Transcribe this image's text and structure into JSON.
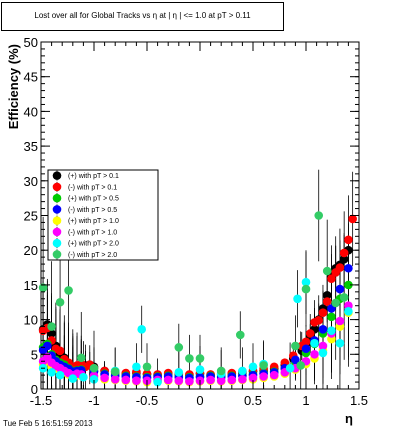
{
  "chart_data": {
    "type": "scatter",
    "title": "Lost over all for Global Tracks vs   η at |  η | <= 1.0 at pT > 0.11",
    "xlabel": "η",
    "ylabel": "Efficiency (%)",
    "xlim": [
      -1.5,
      1.5
    ],
    "ylim": [
      0,
      50
    ],
    "x_ticks": [
      "-1.5",
      "-1",
      "-0.5",
      "0",
      "0.5",
      "1",
      "1.5"
    ],
    "y_ticks": [
      "0",
      "5",
      "10",
      "15",
      "20",
      "25",
      "30",
      "35",
      "40",
      "45",
      "50"
    ],
    "grid": false,
    "legend_position": "center-left",
    "series": [
      {
        "name": "(+) with pT > 0.1",
        "color": "#000000",
        "points": [
          [
            -1.48,
            8.6
          ],
          [
            -1.44,
            9.3
          ],
          [
            -1.4,
            8.0
          ],
          [
            -1.36,
            6.2
          ],
          [
            -1.32,
            5.1
          ],
          [
            -1.28,
            4.5
          ],
          [
            -1.24,
            3.6
          ],
          [
            -1.2,
            3.2
          ],
          [
            -1.16,
            3.0
          ],
          [
            -1.12,
            3.1
          ],
          [
            -1.08,
            3.4
          ],
          [
            -1.04,
            3.5
          ],
          [
            -1.0,
            3.2
          ],
          [
            -0.9,
            2.6
          ],
          [
            -0.8,
            2.4
          ],
          [
            -0.7,
            2.2
          ],
          [
            -0.6,
            2.3
          ],
          [
            -0.5,
            2.1
          ],
          [
            -0.4,
            2.0
          ],
          [
            -0.3,
            2.2
          ],
          [
            -0.2,
            2.1
          ],
          [
            -0.1,
            2.0
          ],
          [
            0.0,
            2.2
          ],
          [
            0.1,
            2.0
          ],
          [
            0.2,
            2.1
          ],
          [
            0.3,
            2.2
          ],
          [
            0.4,
            2.3
          ],
          [
            0.5,
            2.5
          ],
          [
            0.6,
            2.6
          ],
          [
            0.7,
            2.9
          ],
          [
            0.8,
            3.4
          ],
          [
            0.88,
            4.4
          ],
          [
            0.96,
            5.5
          ],
          [
            1.0,
            6.5
          ],
          [
            1.04,
            7.5
          ],
          [
            1.08,
            8.6
          ],
          [
            1.12,
            10.0
          ],
          [
            1.16,
            11.6
          ],
          [
            1.2,
            13.5
          ],
          [
            1.24,
            16.4
          ],
          [
            1.28,
            17.4
          ],
          [
            1.32,
            17.9
          ],
          [
            1.36,
            18.7
          ],
          [
            1.4,
            20.0
          ]
        ]
      },
      {
        "name": "(-) with pT > 0.1",
        "color": "#ff0000",
        "points": [
          [
            -1.48,
            8.4
          ],
          [
            -1.44,
            8.8
          ],
          [
            -1.4,
            7.0
          ],
          [
            -1.36,
            5.8
          ],
          [
            -1.32,
            5.5
          ],
          [
            -1.28,
            4.3
          ],
          [
            -1.24,
            3.8
          ],
          [
            -1.2,
            3.2
          ],
          [
            -1.16,
            3.4
          ],
          [
            -1.12,
            3.6
          ],
          [
            -1.08,
            3.2
          ],
          [
            -1.04,
            3.5
          ],
          [
            -1.0,
            3.0
          ],
          [
            -0.9,
            2.6
          ],
          [
            -0.8,
            2.5
          ],
          [
            -0.7,
            2.3
          ],
          [
            -0.6,
            2.5
          ],
          [
            -0.5,
            2.2
          ],
          [
            -0.4,
            2.1
          ],
          [
            -0.3,
            2.3
          ],
          [
            -0.2,
            2.2
          ],
          [
            -0.1,
            2.1
          ],
          [
            0.0,
            2.3
          ],
          [
            0.1,
            2.1
          ],
          [
            0.2,
            2.2
          ],
          [
            0.3,
            2.3
          ],
          [
            0.4,
            2.5
          ],
          [
            0.5,
            2.7
          ],
          [
            0.6,
            2.9
          ],
          [
            0.7,
            3.2
          ],
          [
            0.8,
            3.8
          ],
          [
            0.88,
            4.8
          ],
          [
            0.96,
            6.2
          ],
          [
            1.0,
            6.8
          ],
          [
            1.04,
            8.0
          ],
          [
            1.08,
            9.6
          ],
          [
            1.12,
            9.9
          ],
          [
            1.16,
            11.0
          ],
          [
            1.2,
            12.6
          ],
          [
            1.24,
            15.9
          ],
          [
            1.28,
            16.8
          ],
          [
            1.32,
            17.5
          ],
          [
            1.36,
            19.6
          ],
          [
            1.4,
            21.5
          ],
          [
            1.44,
            24.5
          ]
        ]
      },
      {
        "name": "(+) with pT > 0.5",
        "color": "#00cc00",
        "points": [
          [
            -1.48,
            6.0
          ],
          [
            -1.44,
            6.5
          ],
          [
            -1.4,
            5.0
          ],
          [
            -1.36,
            4.2
          ],
          [
            -1.32,
            3.8
          ],
          [
            -1.28,
            3.5
          ],
          [
            -1.24,
            3.0
          ],
          [
            -1.2,
            2.6
          ],
          [
            -1.16,
            2.7
          ],
          [
            -1.12,
            2.8
          ],
          [
            -1.0,
            2.6
          ],
          [
            -0.9,
            2.2
          ],
          [
            -0.8,
            2.0
          ],
          [
            -0.7,
            1.9
          ],
          [
            -0.6,
            1.8
          ],
          [
            -0.5,
            1.7
          ],
          [
            -0.4,
            1.8
          ],
          [
            -0.3,
            1.9
          ],
          [
            -0.2,
            1.8
          ],
          [
            -0.1,
            1.7
          ],
          [
            0.0,
            1.8
          ],
          [
            0.1,
            1.9
          ],
          [
            0.2,
            1.8
          ],
          [
            0.3,
            1.9
          ],
          [
            0.4,
            2.0
          ],
          [
            0.5,
            2.1
          ],
          [
            0.6,
            2.3
          ],
          [
            0.7,
            2.5
          ],
          [
            0.8,
            2.9
          ],
          [
            0.9,
            3.8
          ],
          [
            1.0,
            5.2
          ],
          [
            1.08,
            6.5
          ],
          [
            1.16,
            8.0
          ],
          [
            1.24,
            10.4
          ],
          [
            1.32,
            13.0
          ],
          [
            1.4,
            15.0
          ]
        ]
      },
      {
        "name": "(-) with pT > 0.5",
        "color": "#0000ff",
        "points": [
          [
            -1.48,
            5.6
          ],
          [
            -1.44,
            6.2
          ],
          [
            -1.4,
            4.8
          ],
          [
            -1.36,
            4.0
          ],
          [
            -1.32,
            3.5
          ],
          [
            -1.28,
            3.2
          ],
          [
            -1.24,
            2.9
          ],
          [
            -1.2,
            2.5
          ],
          [
            -1.16,
            2.6
          ],
          [
            -1.12,
            2.7
          ],
          [
            -1.0,
            2.5
          ],
          [
            -0.9,
            2.1
          ],
          [
            -0.8,
            1.9
          ],
          [
            -0.7,
            1.8
          ],
          [
            -0.6,
            1.7
          ],
          [
            -0.5,
            1.6
          ],
          [
            -0.4,
            1.7
          ],
          [
            -0.3,
            1.8
          ],
          [
            -0.2,
            1.7
          ],
          [
            -0.1,
            1.6
          ],
          [
            0.0,
            1.7
          ],
          [
            0.1,
            1.8
          ],
          [
            0.2,
            1.7
          ],
          [
            0.3,
            1.8
          ],
          [
            0.4,
            1.9
          ],
          [
            0.5,
            2.0
          ],
          [
            0.6,
            2.2
          ],
          [
            0.7,
            2.4
          ],
          [
            0.8,
            3.0
          ],
          [
            0.9,
            4.2
          ],
          [
            1.0,
            5.8
          ],
          [
            1.08,
            7.0
          ],
          [
            1.16,
            8.6
          ],
          [
            1.24,
            11.6
          ],
          [
            1.32,
            14.4
          ],
          [
            1.4,
            17.4
          ]
        ]
      },
      {
        "name": "(+) with pT > 1.0",
        "color": "#ffff00",
        "points": [
          [
            -1.48,
            3.5
          ],
          [
            -1.44,
            4.0
          ],
          [
            -1.4,
            3.2
          ],
          [
            -1.36,
            2.9
          ],
          [
            -1.32,
            2.6
          ],
          [
            -1.28,
            2.4
          ],
          [
            -1.24,
            2.1
          ],
          [
            -1.2,
            1.9
          ],
          [
            -1.16,
            2.0
          ],
          [
            -1.12,
            1.9
          ],
          [
            -1.0,
            1.7
          ],
          [
            -0.9,
            1.4
          ],
          [
            -0.8,
            1.3
          ],
          [
            -0.7,
            1.2
          ],
          [
            -0.6,
            1.1
          ],
          [
            -0.5,
            1.0
          ],
          [
            -0.4,
            1.1
          ],
          [
            -0.3,
            1.2
          ],
          [
            -0.2,
            1.1
          ],
          [
            -0.1,
            1.0
          ],
          [
            0.0,
            1.1
          ],
          [
            0.1,
            1.2
          ],
          [
            0.2,
            1.1
          ],
          [
            0.3,
            1.2
          ],
          [
            0.4,
            1.3
          ],
          [
            0.5,
            1.4
          ],
          [
            0.6,
            1.6
          ],
          [
            0.7,
            1.8
          ],
          [
            0.8,
            2.2
          ],
          [
            0.9,
            2.8
          ],
          [
            1.0,
            3.6
          ],
          [
            1.08,
            4.4
          ],
          [
            1.16,
            5.6
          ],
          [
            1.24,
            7.2
          ],
          [
            1.32,
            9.0
          ],
          [
            1.4,
            11.0
          ]
        ]
      },
      {
        "name": "(-) with pT > 1.0",
        "color": "#ff00ff",
        "points": [
          [
            -1.48,
            4.0
          ],
          [
            -1.44,
            4.6
          ],
          [
            -1.4,
            3.8
          ],
          [
            -1.36,
            3.3
          ],
          [
            -1.32,
            3.0
          ],
          [
            -1.28,
            2.6
          ],
          [
            -1.24,
            2.3
          ],
          [
            -1.2,
            2.0
          ],
          [
            -1.16,
            2.2
          ],
          [
            -1.12,
            2.1
          ],
          [
            -1.0,
            1.9
          ],
          [
            -0.9,
            1.6
          ],
          [
            -0.8,
            1.4
          ],
          [
            -0.7,
            1.3
          ],
          [
            -0.6,
            1.2
          ],
          [
            -0.5,
            1.2
          ],
          [
            -0.4,
            1.3
          ],
          [
            -0.3,
            1.3
          ],
          [
            -0.2,
            1.2
          ],
          [
            -0.1,
            1.1
          ],
          [
            0.0,
            1.2
          ],
          [
            0.1,
            1.3
          ],
          [
            0.2,
            1.2
          ],
          [
            0.3,
            1.3
          ],
          [
            0.4,
            1.4
          ],
          [
            0.5,
            1.6
          ],
          [
            0.6,
            1.8
          ],
          [
            0.7,
            2.0
          ],
          [
            0.8,
            2.4
          ],
          [
            0.9,
            3.0
          ],
          [
            1.0,
            4.0
          ],
          [
            1.08,
            5.0
          ],
          [
            1.16,
            6.2
          ],
          [
            1.24,
            8.0
          ],
          [
            1.32,
            9.8
          ],
          [
            1.4,
            12.0
          ]
        ]
      },
      {
        "name": "(+) with pT > 2.0",
        "color": "#00ffff",
        "points": [
          [
            -1.48,
            3.0
          ],
          [
            -1.4,
            2.4
          ],
          [
            -1.32,
            2.0
          ],
          [
            -1.2,
            1.5
          ],
          [
            -1.1,
            1.7
          ],
          [
            -1.0,
            1.4
          ],
          [
            -0.8,
            2.6
          ],
          [
            -0.6,
            3.2
          ],
          [
            -0.55,
            8.6
          ],
          [
            -0.4,
            1.0
          ],
          [
            -0.2,
            2.4
          ],
          [
            0.0,
            2.8
          ],
          [
            0.2,
            2.2
          ],
          [
            0.4,
            2.6
          ],
          [
            0.5,
            3.2
          ],
          [
            0.6,
            3.6
          ],
          [
            0.85,
            3.0
          ],
          [
            0.92,
            13.0
          ],
          [
            1.0,
            15.4
          ],
          [
            1.08,
            6.6
          ],
          [
            1.16,
            5.2
          ],
          [
            1.24,
            8.4
          ],
          [
            1.32,
            6.6
          ],
          [
            1.4,
            11.2
          ]
        ]
      },
      {
        "name": "(-) with pT > 2.0",
        "color": "#33cc66",
        "points": [
          [
            -1.48,
            14.6
          ],
          [
            -1.4,
            9.0
          ],
          [
            -1.32,
            12.5
          ],
          [
            -1.24,
            14.2
          ],
          [
            -1.12,
            4.5
          ],
          [
            -1.0,
            3.0
          ],
          [
            -0.8,
            2.5
          ],
          [
            -0.5,
            3.2
          ],
          [
            -0.2,
            6.0
          ],
          [
            -0.1,
            4.4
          ],
          [
            0.0,
            4.4
          ],
          [
            0.2,
            2.6
          ],
          [
            0.38,
            7.8
          ],
          [
            0.6,
            3.4
          ],
          [
            0.9,
            6.2
          ],
          [
            0.95,
            3.4
          ],
          [
            1.0,
            14.4
          ],
          [
            1.12,
            25.0
          ],
          [
            1.2,
            17.0
          ],
          [
            1.28,
            12.4
          ],
          [
            1.36,
            13.2
          ]
        ]
      }
    ]
  },
  "footer": {
    "timestamp": "Tue Feb  5 16:51:59 2013"
  }
}
